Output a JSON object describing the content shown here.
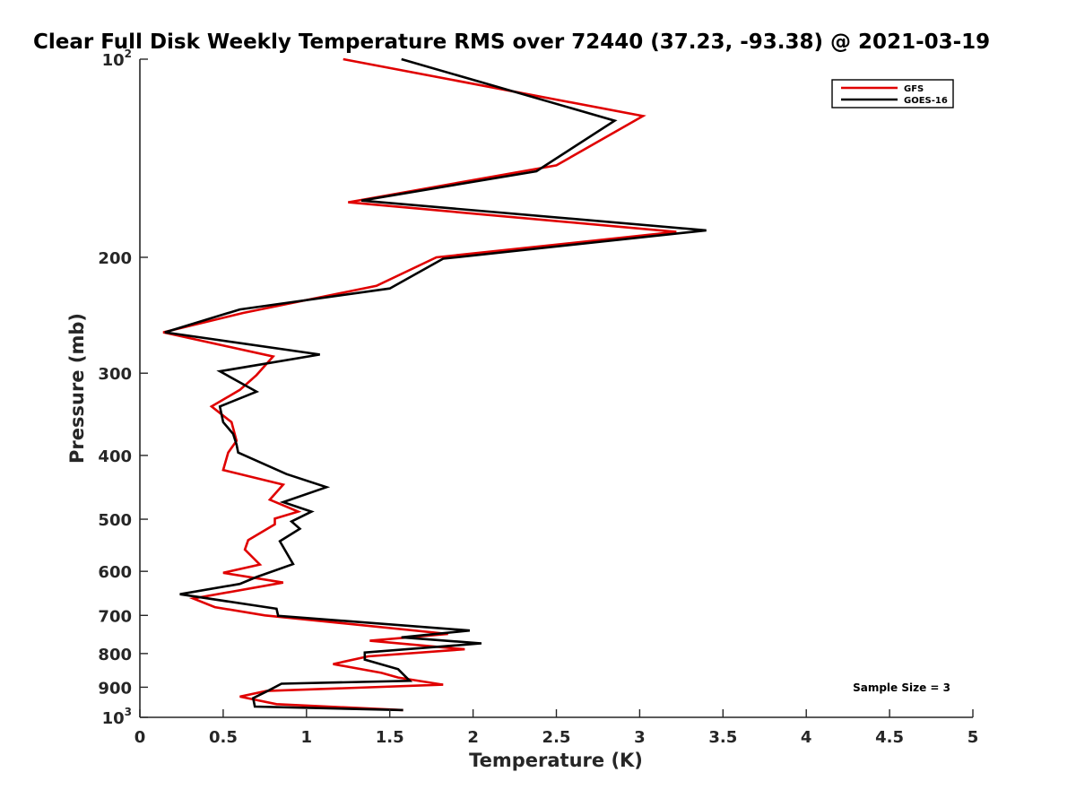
{
  "chart_data": {
    "type": "line",
    "title": "Clear Full Disk Weekly Temperature RMS over 72440 (37.23, -93.38) @ 2021-03-19",
    "xlabel": "Temperature (K)",
    "ylabel": "Pressure (mb)",
    "xlim": [
      0,
      5
    ],
    "ylim": [
      100,
      1000
    ],
    "y_scale": "log",
    "y_reversed": true,
    "grid": false,
    "legend_position": "top-right",
    "x_ticks": [
      0,
      0.5,
      1,
      1.5,
      2,
      2.5,
      3,
      3.5,
      4,
      4.5,
      5
    ],
    "x_tick_labels": [
      "0",
      "0.5",
      "1",
      "1.5",
      "2",
      "2.5",
      "3",
      "3.5",
      "4",
      "4.5",
      "5"
    ],
    "y_ticks": [
      100,
      200,
      300,
      400,
      500,
      600,
      700,
      800,
      900,
      1000
    ],
    "y_tick_labels": [
      {
        "base": "10",
        "exp": "2"
      },
      {
        "base": "200",
        "exp": ""
      },
      {
        "base": "300",
        "exp": ""
      },
      {
        "base": "400",
        "exp": ""
      },
      {
        "base": "500",
        "exp": ""
      },
      {
        "base": "600",
        "exp": ""
      },
      {
        "base": "700",
        "exp": ""
      },
      {
        "base": "800",
        "exp": ""
      },
      {
        "base": "900",
        "exp": ""
      },
      {
        "base": "10",
        "exp": "3"
      }
    ],
    "annotation": "Sample Size = 3",
    "series": [
      {
        "name": "GFS",
        "color": "#e00000",
        "points": [
          [
            1.22,
            100
          ],
          [
            3.02,
            122
          ],
          [
            2.5,
            145
          ],
          [
            1.25,
            165
          ],
          [
            3.22,
            183
          ],
          [
            1.78,
            200
          ],
          [
            1.42,
            221
          ],
          [
            0.62,
            243
          ],
          [
            0.14,
            260
          ],
          [
            0.8,
            283
          ],
          [
            0.7,
            302
          ],
          [
            0.6,
            318
          ],
          [
            0.43,
            337
          ],
          [
            0.55,
            356
          ],
          [
            0.58,
            380
          ],
          [
            0.53,
            396
          ],
          [
            0.5,
            421
          ],
          [
            0.86,
            443
          ],
          [
            0.78,
            467
          ],
          [
            0.95,
            487
          ],
          [
            0.81,
            499
          ],
          [
            0.81,
            509
          ],
          [
            0.65,
            538
          ],
          [
            0.63,
            556
          ],
          [
            0.72,
            586
          ],
          [
            0.5,
            603
          ],
          [
            0.86,
            624
          ],
          [
            0.32,
            660
          ],
          [
            0.45,
            680
          ],
          [
            0.75,
            700
          ],
          [
            1.85,
            747
          ],
          [
            1.38,
            765
          ],
          [
            1.95,
            788
          ],
          [
            1.37,
            808
          ],
          [
            1.16,
            830
          ],
          [
            1.45,
            856
          ],
          [
            1.55,
            870
          ],
          [
            1.82,
            892
          ],
          [
            0.76,
            912
          ],
          [
            0.6,
            930
          ],
          [
            0.82,
            955
          ],
          [
            1.58,
            975
          ]
        ]
      },
      {
        "name": "GOES-16",
        "color": "#000000",
        "points": [
          [
            1.57,
            100
          ],
          [
            2.85,
            124
          ],
          [
            2.38,
            148
          ],
          [
            1.33,
            164
          ],
          [
            3.4,
            182
          ],
          [
            1.82,
            201
          ],
          [
            1.5,
            223
          ],
          [
            0.6,
            240
          ],
          [
            0.15,
            260
          ],
          [
            1.08,
            281
          ],
          [
            0.48,
            298
          ],
          [
            0.7,
            320
          ],
          [
            0.48,
            337
          ],
          [
            0.5,
            356
          ],
          [
            0.56,
            371
          ],
          [
            0.58,
            385
          ],
          [
            0.59,
            396
          ],
          [
            0.88,
            427
          ],
          [
            1.12,
            447
          ],
          [
            0.86,
            471
          ],
          [
            1.03,
            487
          ],
          [
            0.91,
            504
          ],
          [
            0.96,
            517
          ],
          [
            0.84,
            540
          ],
          [
            0.92,
            585
          ],
          [
            0.7,
            612
          ],
          [
            0.6,
            627
          ],
          [
            0.24,
            650
          ],
          [
            0.82,
            684
          ],
          [
            0.83,
            701
          ],
          [
            1.98,
            738
          ],
          [
            1.57,
            756
          ],
          [
            2.05,
            772
          ],
          [
            1.35,
            797
          ],
          [
            1.35,
            817
          ],
          [
            1.55,
            845
          ],
          [
            1.62,
            880
          ],
          [
            0.85,
            889
          ],
          [
            0.77,
            911
          ],
          [
            0.68,
            935
          ],
          [
            0.69,
            963
          ],
          [
            1.58,
            975
          ]
        ]
      }
    ]
  }
}
